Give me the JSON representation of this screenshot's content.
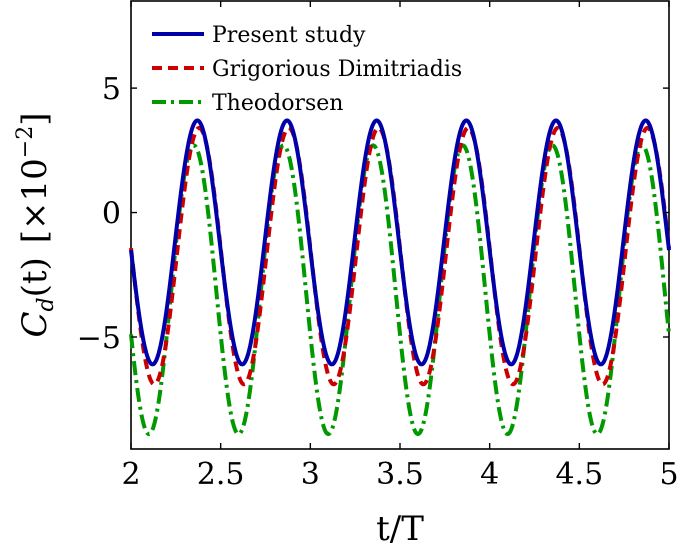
{
  "chart_data": {
    "type": "line",
    "xlabel": "t/T",
    "ylabel": {
      "main": "C",
      "sub": "d",
      "arg": "(t)",
      "scale_text": "[×10",
      "scale_exp": "−2",
      "scale_close": "]"
    },
    "xlim": [
      2,
      5
    ],
    "ylim": [
      -9.5,
      8.5
    ],
    "x_ticks": [
      2,
      2.5,
      3,
      3.5,
      4,
      4.5,
      5
    ],
    "x_tick_labels": [
      "2",
      "2.5",
      "3",
      "3.5",
      "4",
      "4.5",
      "5"
    ],
    "y_ticks": [
      -5,
      0,
      5
    ],
    "y_tick_labels": [
      "−5",
      "0",
      "5"
    ],
    "grid": false,
    "legend_position": "top-left",
    "period": 0.5,
    "series": [
      {
        "name": "Present study",
        "color": "#0000aa",
        "style": "solid",
        "peak_x": [
          2.37,
          2.87,
          3.37,
          3.87,
          4.37,
          4.87
        ],
        "max": 3.7,
        "trough_x": [
          2.12,
          2.62,
          3.12,
          3.62,
          4.12,
          4.62
        ],
        "min": -6.1
      },
      {
        "name": "Grigorious Dimitriadis",
        "color": "#cc0000",
        "style": "dashed",
        "peak_x": [
          2.38,
          2.88,
          3.38,
          3.88,
          4.38,
          4.88
        ],
        "max": 3.4,
        "trough_x": [
          2.13,
          2.63,
          3.13,
          3.63,
          4.13,
          4.63
        ],
        "min": -6.9
      },
      {
        "name": "Theodorsen",
        "color": "#009900",
        "style": "dashdot",
        "peak_x": [
          2.35,
          2.85,
          3.35,
          3.85,
          4.35,
          4.85
        ],
        "max": 2.7,
        "trough_x": [
          2.1,
          2.6,
          3.1,
          3.6,
          4.1,
          4.6
        ],
        "min": -8.9
      }
    ]
  }
}
